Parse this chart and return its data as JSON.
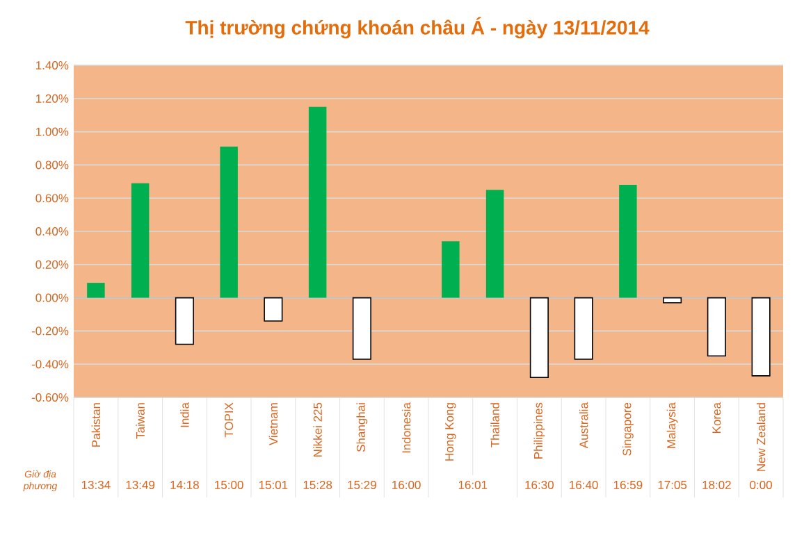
{
  "chart_data": {
    "type": "bar",
    "title": "Thị trường chứng khoán châu Á - ngày 13/11/2014",
    "categories": [
      "Pakistan",
      "Taiwan",
      "India",
      "TOPIX",
      "Vietnam",
      "Nikkei 225",
      "Shanghai",
      "Indonesia",
      "Hong Kong",
      "Thailand",
      "Philippines",
      "Australia",
      "Singapore",
      "Malaysia",
      "Korea",
      "New Zealand"
    ],
    "values": [
      0.09,
      0.69,
      -0.28,
      0.91,
      -0.14,
      1.15,
      -0.37,
      0,
      0.34,
      0.65,
      -0.48,
      -0.37,
      0.68,
      -0.03,
      -0.35,
      -0.47
    ],
    "colors": [
      "#00b050",
      "#00b050",
      "#ffffff",
      "#00b050",
      "#ffffff",
      "#00b050",
      "#ffffff",
      "#ffffff",
      "#00b050",
      "#00b050",
      "#ffffff",
      "#ffffff",
      "#00b050",
      "#ffffff",
      "#ffffff",
      "#ffffff"
    ],
    "ylim": [
      -0.6,
      1.4
    ],
    "yticks": [
      {
        "value": -0.6,
        "label": "-0.60%"
      },
      {
        "value": -0.4,
        "label": "-0.40%"
      },
      {
        "value": -0.2,
        "label": "-0.20%"
      },
      {
        "value": 0,
        "label": "0.00%"
      },
      {
        "value": 0.2,
        "label": "0.20%"
      },
      {
        "value": 0.4,
        "label": "0.40%"
      },
      {
        "value": 0.6,
        "label": "0.60%"
      },
      {
        "value": 0.8,
        "label": "0.80%"
      },
      {
        "value": 1.0,
        "label": "1.00%"
      },
      {
        "value": 1.2,
        "label": "1.20%"
      },
      {
        "value": 1.4,
        "label": "1.40%"
      }
    ],
    "grid": "y",
    "annotations": [
      "Giờ địa phương",
      "13:34",
      "13:49",
      "14:18",
      "15:00",
      "15:01",
      "15:28",
      "15:29",
      "16:00",
      "16:01",
      "16:30",
      "16:40",
      "16:59",
      "17:05",
      "18:02",
      "0:00"
    ]
  }
}
